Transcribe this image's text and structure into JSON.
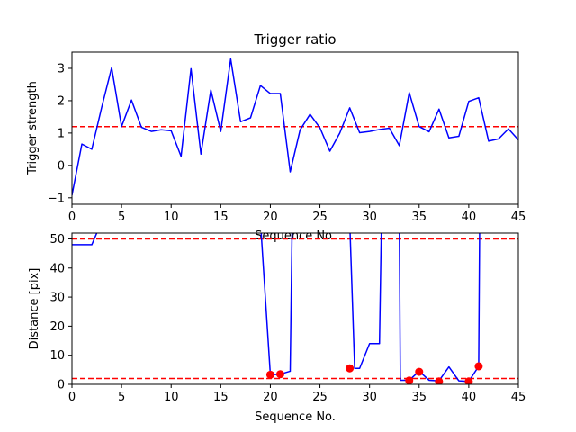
{
  "colors": {
    "line": "#0000ff",
    "threshold": "#ff0000",
    "marker": "#ff0000",
    "axes": "#000000"
  },
  "chart_data": [
    {
      "type": "line",
      "title": "Trigger ratio",
      "xlabel": "Sequence No.",
      "ylabel": "Trigger strength",
      "xlim": [
        0,
        45
      ],
      "ylim": [
        -1.2,
        3.5
      ],
      "xticks": [
        0,
        5,
        10,
        15,
        20,
        25,
        30,
        35,
        40,
        45
      ],
      "yticks": [
        -1,
        0,
        1,
        2,
        3
      ],
      "grid": false,
      "series": [
        {
          "x": [
            0,
            1,
            2,
            3,
            4,
            5,
            6,
            7,
            8,
            9,
            10,
            11,
            12,
            13,
            14,
            15,
            16,
            17,
            18,
            19,
            20,
            21,
            22,
            23,
            24,
            25,
            26,
            27,
            28,
            29,
            30,
            31,
            32,
            33,
            34,
            35,
            36,
            37,
            38,
            39,
            40,
            41,
            42,
            43,
            44,
            45
          ],
          "values": [
            -0.92,
            0.66,
            0.5,
            1.8,
            3.02,
            1.2,
            2.02,
            1.18,
            1.05,
            1.1,
            1.07,
            0.28,
            2.99,
            0.35,
            2.33,
            1.05,
            3.29,
            1.35,
            1.47,
            2.47,
            2.22,
            2.22,
            -0.2,
            1.1,
            1.58,
            1.16,
            0.44,
            1.0,
            1.78,
            1.01,
            1.05,
            1.11,
            1.15,
            0.61,
            2.25,
            1.2,
            1.04,
            1.74,
            0.85,
            0.9,
            1.98,
            2.09,
            0.75,
            0.82,
            1.13,
            0.79
          ]
        }
      ],
      "reference_lines": [
        {
          "axis": "y",
          "value": 1.2,
          "style": "dashed"
        }
      ]
    },
    {
      "type": "line",
      "title": "",
      "xlabel": "Sequence No.",
      "ylabel": "Distance [pix]",
      "xlim": [
        0,
        45
      ],
      "ylim": [
        0,
        52
      ],
      "xticks": [
        0,
        5,
        10,
        15,
        20,
        25,
        30,
        35,
        40,
        45
      ],
      "yticks": [
        0,
        10,
        20,
        30,
        40,
        50
      ],
      "grid": false,
      "series": [
        {
          "x": [
            0,
            1,
            2,
            3,
            19,
            20,
            21,
            22,
            22.2,
            28,
            28.5,
            29,
            30,
            31,
            31.2,
            33,
            33.1,
            34,
            35,
            36,
            37,
            38,
            39,
            40,
            41,
            41.1
          ],
          "values": [
            48,
            48,
            48,
            56,
            56,
            3.3,
            3.5,
            4.5,
            56,
            56,
            5.5,
            5.5,
            14,
            14,
            56,
            56,
            1.4,
            1.4,
            4.5,
            1.4,
            1.2,
            6,
            1.2,
            1.0,
            6.2,
            56
          ]
        },
        {
          "marker": "circle",
          "x": [
            20,
            21,
            28,
            34,
            35,
            37,
            40,
            41
          ],
          "values": [
            3.3,
            3.5,
            5.5,
            1.3,
            4.3,
            1.0,
            1.0,
            6.2
          ]
        }
      ],
      "reference_lines": [
        {
          "axis": "y",
          "value": 50,
          "style": "dashed"
        },
        {
          "axis": "y",
          "value": 2,
          "style": "dashed"
        }
      ]
    }
  ]
}
